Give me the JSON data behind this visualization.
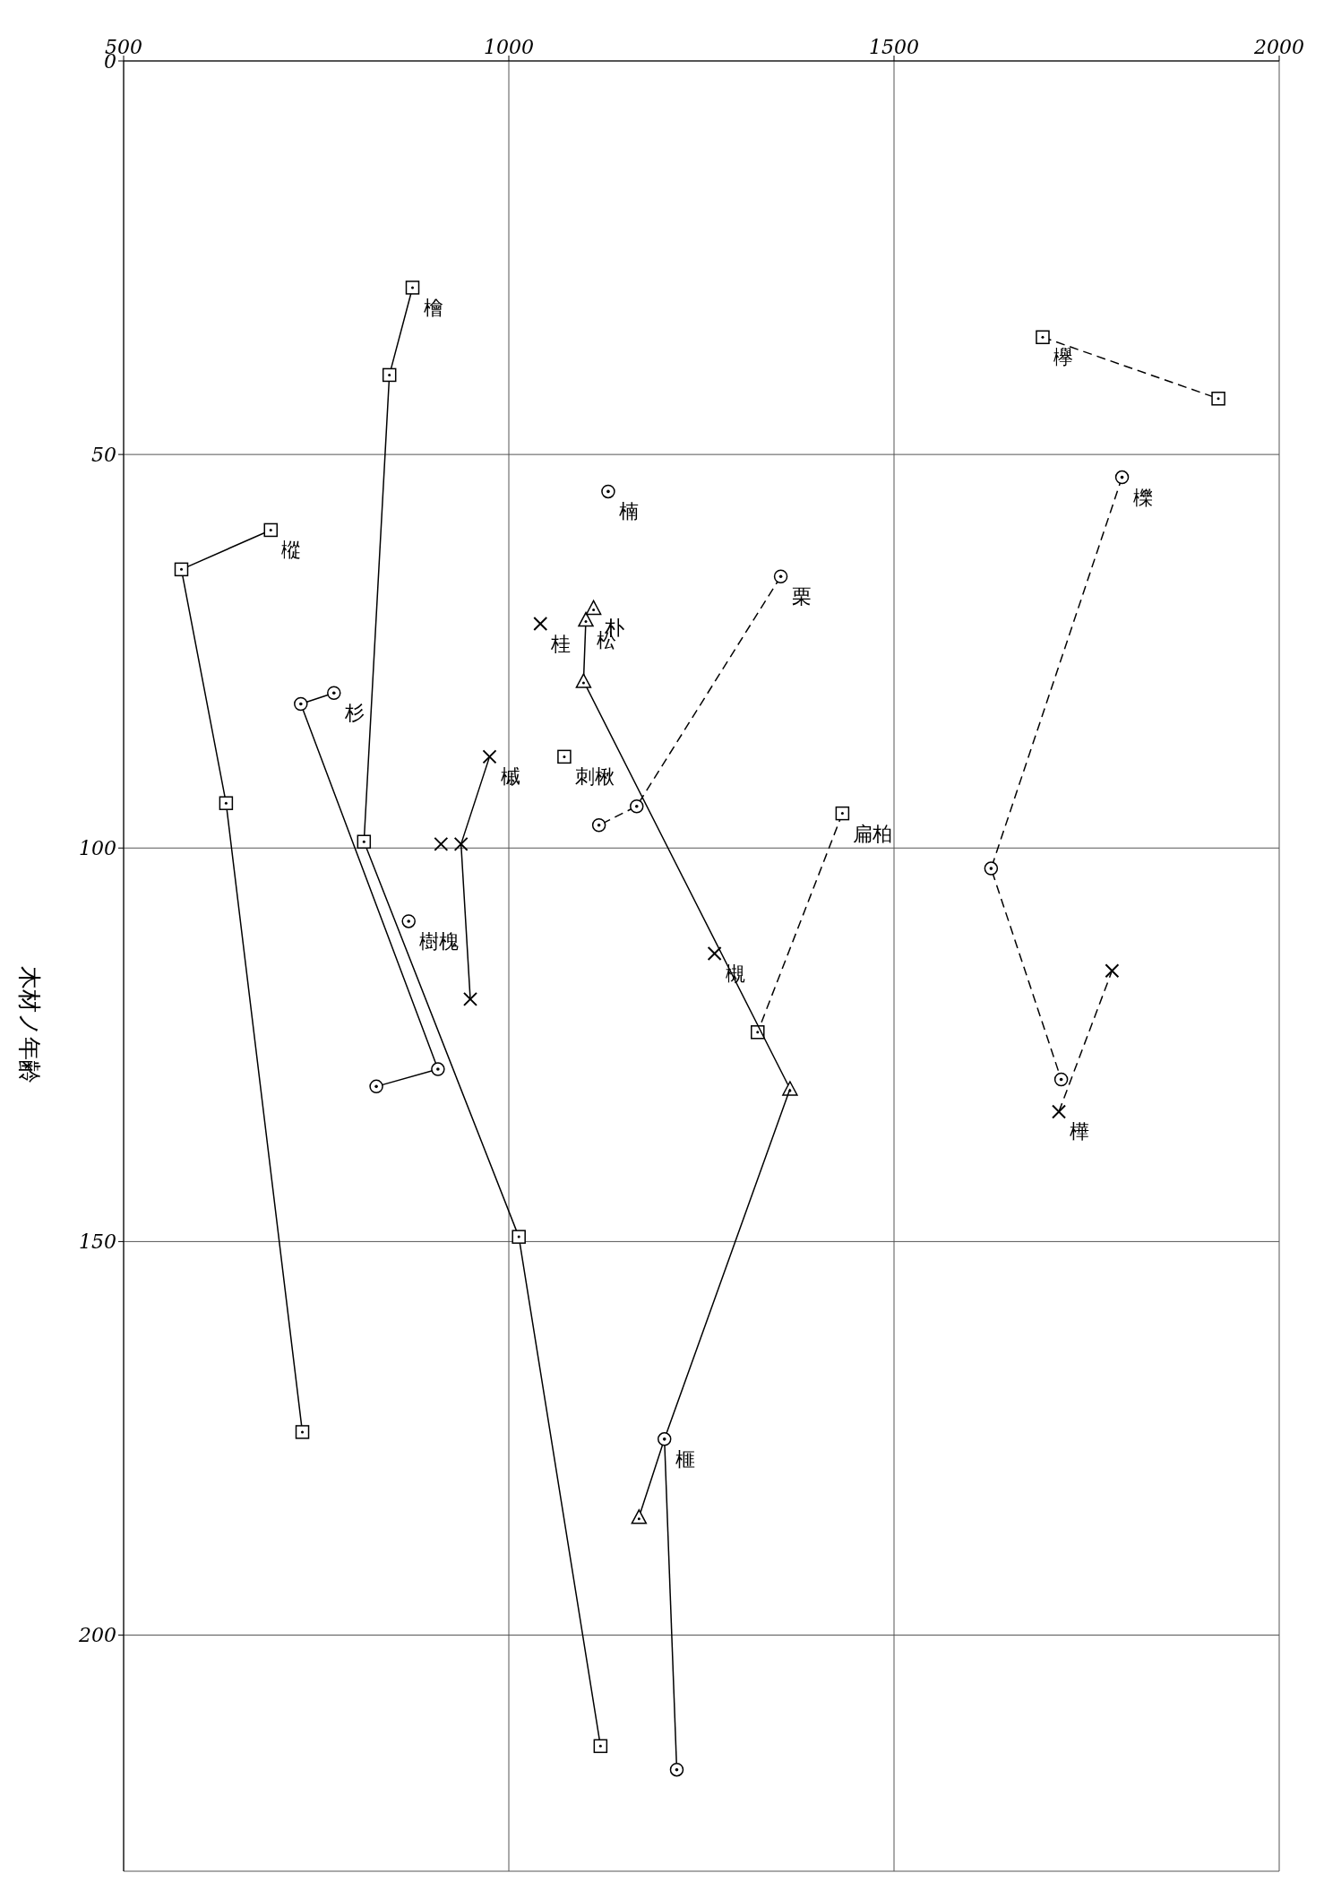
{
  "chart_data": {
    "type": "line",
    "ylabel": "木材ノ年齢",
    "xlim": [
      500,
      2000
    ],
    "xticks": [
      500,
      1000,
      1500,
      2000
    ],
    "ylim": [
      230,
      0
    ],
    "yticks": [
      0,
      50,
      100,
      150,
      200
    ],
    "grid": true,
    "series": [
      {
        "name": "欅",
        "color": "#000000",
        "marker": "square",
        "line_style": "dashed",
        "x": [
          1693,
          1921
        ],
        "values": [
          35.1,
          42.9
        ]
      },
      {
        "name": "櫟",
        "color": "#000000",
        "marker": "circle",
        "line_style": "dashed",
        "x": [
          1796,
          1626,
          1717
        ],
        "values": [
          52.9,
          102.6,
          129.4
        ]
      },
      {
        "name": "樺",
        "color": "#000000",
        "marker": "cross",
        "line_style": "dashed",
        "x": [
          1714,
          1783
        ],
        "values": [
          133.5,
          115.6
        ]
      },
      {
        "name": "檜",
        "color": "#000000",
        "marker": "square",
        "line_style": "solid",
        "x": [
          875,
          845,
          812,
          1013,
          1119
        ],
        "values": [
          28.8,
          39.9,
          99.2,
          149.4,
          214.1
        ]
      },
      {
        "name": "樅",
        "color": "#000000",
        "marker": "square",
        "line_style": "solid",
        "x": [
          691,
          575,
          633,
          732
        ],
        "values": [
          59.6,
          64.6,
          94.3,
          174.2
        ]
      },
      {
        "name": "杉",
        "color": "#000000",
        "marker": "circle",
        "line_style": "solid",
        "x": [
          773,
          730,
          908,
          828
        ],
        "values": [
          80.3,
          81.7,
          128.1,
          130.3
        ]
      },
      {
        "name": "栗",
        "color": "#000000",
        "marker": "circle",
        "line_style": "dashed",
        "x": [
          1353,
          1166,
          1117
        ],
        "values": [
          65.5,
          94.7,
          97.1
        ]
      },
      {
        "name": "扁柏",
        "color": "#000000",
        "marker": "square",
        "line_style": "dashed",
        "x": [
          1433,
          1323
        ],
        "values": [
          95.6,
          123.4
        ]
      },
      {
        "name": "松",
        "color": "#000000",
        "marker": "triangle",
        "line_style": "solid",
        "x": [
          1100,
          1097,
          1365
        ],
        "values": [
          71,
          78.8,
          130.6
        ]
      },
      {
        "color": "#000000",
        "marker": "none",
        "line_style": "solid",
        "x": [
          1365,
          1202,
          1169
        ],
        "values": [
          130.6,
          175.1,
          185
        ]
      },
      {
        "color": "#000000",
        "marker": "triangle",
        "line_style": "none",
        "x": [
          1169
        ],
        "values": [
          185
        ]
      },
      {
        "name": "朴",
        "color": "#000000",
        "marker": "triangle",
        "line_style": "none",
        "x": [
          1110
        ],
        "values": [
          69.5
        ]
      },
      {
        "name": "槻",
        "color": "#000000",
        "marker": "cross",
        "line_style": "none",
        "x": [
          1267
        ],
        "values": [
          113.4
        ]
      },
      {
        "name": "榧",
        "color": "#000000",
        "marker": "circle",
        "line_style": "solid",
        "x": [
          1202,
          1218
        ],
        "values": [
          175.1,
          217.1
        ]
      },
      {
        "name": "槭",
        "color": "#000000",
        "marker": "cross",
        "line_style": "solid",
        "x": [
          975,
          938,
          950
        ],
        "values": [
          88.4,
          99.5,
          119.2
        ]
      },
      {
        "color": "#000000",
        "marker": "cross",
        "line_style": "none",
        "x": [
          912
        ],
        "values": [
          99.5
        ]
      },
      {
        "name": "樹槐",
        "color": "#000000",
        "marker": "circle",
        "line_style": "none",
        "x": [
          870
        ],
        "values": [
          109.3
        ]
      },
      {
        "name": "桂",
        "color": "#000000",
        "marker": "cross",
        "line_style": "none",
        "x": [
          1041
        ],
        "values": [
          71.5
        ]
      },
      {
        "name": "楠",
        "color": "#000000",
        "marker": "circle",
        "line_style": "none",
        "x": [
          1129
        ],
        "values": [
          54.7
        ]
      },
      {
        "name": "刺楸",
        "color": "#000000",
        "marker": "square",
        "line_style": "none",
        "x": [
          1072
        ],
        "values": [
          88.4
        ]
      }
    ]
  }
}
